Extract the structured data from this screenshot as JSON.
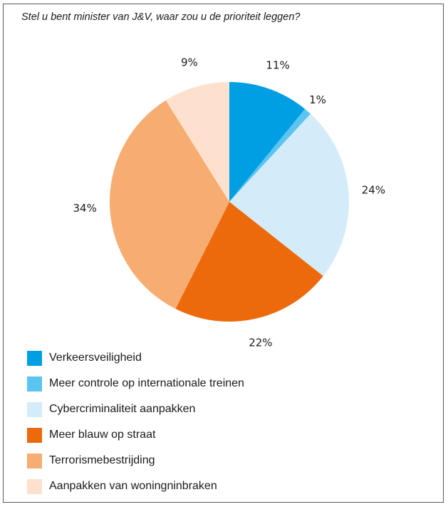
{
  "chart_data": {
    "type": "pie",
    "title": "Stel u bent minister van J&V, waar zou u de prioriteit leggen?",
    "categories": [
      "Verkeersveiligheid",
      "Meer controle op internationale treinen",
      "Cybercriminaliteit aanpakken",
      "Meer blauw op straat",
      "Terrorismebestrijding",
      "Aanpakken van woningninbraken"
    ],
    "values": [
      11,
      1,
      24,
      22,
      34,
      9
    ],
    "value_labels": [
      "11%",
      "1%",
      "24%",
      "22%",
      "34%",
      "9%"
    ],
    "colors": [
      "#009fe3",
      "#5bc4f1",
      "#d4ecfa",
      "#ec6a0c",
      "#f7ad72",
      "#fde1ce"
    ],
    "legend_placement": "bottom-left"
  }
}
